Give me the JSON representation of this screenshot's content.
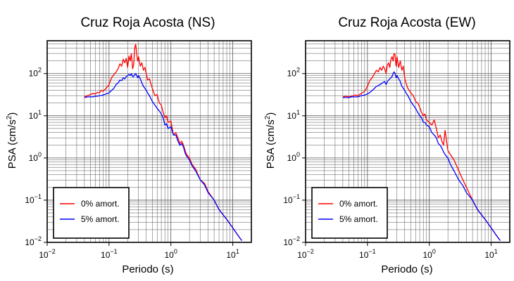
{
  "charts": [
    {
      "title": "Cruz Roja Acosta (NS)",
      "xlabel": "Periodo (s)",
      "ylabel_main": "PSA (cm/s",
      "ylabel_sup": "2",
      "ylabel_end": ")",
      "legend": [
        "0% amort.",
        "5% amort."
      ]
    },
    {
      "title": "Cruz Roja Acosta (EW)",
      "xlabel": "Periodo (s)",
      "ylabel_main": "PSA (cm/s",
      "ylabel_sup": "2",
      "ylabel_end": ")",
      "legend": [
        "0% amort.",
        "5% amort."
      ]
    }
  ],
  "x_ticks": [
    {
      "base": "10",
      "exp": "−2"
    },
    {
      "base": "10",
      "exp": "−1"
    },
    {
      "base": "10",
      "exp": "0"
    },
    {
      "base": "10",
      "exp": "1"
    }
  ],
  "y_ticks": [
    {
      "base": "10",
      "exp": "−2"
    },
    {
      "base": "10",
      "exp": "−1"
    },
    {
      "base": "10",
      "exp": "0"
    },
    {
      "base": "10",
      "exp": "1"
    },
    {
      "base": "10",
      "exp": "2"
    }
  ],
  "colors": {
    "series_0": "#ff0000",
    "series_5": "#0000ff",
    "grid": "#555555",
    "frame": "#000000"
  },
  "chart_data": [
    {
      "type": "line",
      "title": "Cruz Roja Acosta (NS)",
      "xlabel": "Periodo (s)",
      "ylabel": "PSA (cm/s2)",
      "xscale": "log",
      "yscale": "log",
      "xlim": [
        0.01,
        20
      ],
      "ylim": [
        0.01,
        600
      ],
      "grid": true,
      "legend_position": "bottom-left",
      "series": [
        {
          "name": "0% amort.",
          "color": "#ff0000",
          "x": [
            0.04,
            0.045,
            0.05,
            0.055,
            0.06,
            0.065,
            0.07,
            0.075,
            0.08,
            0.09,
            0.1,
            0.11,
            0.12,
            0.13,
            0.14,
            0.15,
            0.16,
            0.17,
            0.18,
            0.19,
            0.2,
            0.21,
            0.22,
            0.23,
            0.24,
            0.25,
            0.26,
            0.27,
            0.28,
            0.29,
            0.3,
            0.32,
            0.34,
            0.36,
            0.38,
            0.4,
            0.42,
            0.45,
            0.5,
            0.55,
            0.6,
            0.65,
            0.7,
            0.75,
            0.8,
            0.85,
            0.9,
            1.0,
            1.1,
            1.2,
            1.3,
            1.4,
            1.5,
            1.6,
            1.7,
            1.8,
            2.0,
            2.2,
            2.5,
            3.0,
            3.5,
            4.0,
            5.0,
            6.0,
            8.0,
            10.0,
            12.0,
            14.0
          ],
          "y": [
            28,
            30,
            32,
            34,
            33,
            36,
            35,
            40,
            38,
            45,
            55,
            80,
            95,
            110,
            130,
            170,
            150,
            220,
            180,
            230,
            140,
            260,
            200,
            300,
            130,
            160,
            400,
            500,
            300,
            200,
            250,
            150,
            180,
            120,
            140,
            100,
            70,
            75,
            45,
            30,
            32,
            20,
            18,
            12,
            9,
            10,
            7,
            7.5,
            3.5,
            4,
            3,
            2.2,
            2.5,
            2.0,
            1.5,
            1.2,
            1.0,
            0.7,
            0.55,
            0.3,
            0.25,
            0.16,
            0.1,
            0.06,
            0.035,
            0.022,
            0.015,
            0.011
          ]
        },
        {
          "name": "5% amort.",
          "color": "#0000ff",
          "x": [
            0.04,
            0.045,
            0.05,
            0.055,
            0.06,
            0.065,
            0.07,
            0.075,
            0.08,
            0.09,
            0.1,
            0.11,
            0.12,
            0.13,
            0.14,
            0.15,
            0.16,
            0.17,
            0.18,
            0.19,
            0.2,
            0.21,
            0.22,
            0.23,
            0.24,
            0.25,
            0.26,
            0.27,
            0.28,
            0.29,
            0.3,
            0.32,
            0.34,
            0.36,
            0.38,
            0.4,
            0.42,
            0.45,
            0.5,
            0.55,
            0.6,
            0.65,
            0.7,
            0.75,
            0.8,
            0.85,
            0.9,
            1.0,
            1.1,
            1.2,
            1.3,
            1.4,
            1.5,
            1.6,
            1.7,
            1.8,
            2.0,
            2.2,
            2.5,
            3.0,
            3.5,
            4.0,
            5.0,
            6.0,
            8.0,
            10.0,
            12.0,
            14.0
          ],
          "y": [
            27,
            28,
            28,
            28,
            29,
            29,
            30,
            30,
            31,
            33,
            35,
            40,
            45,
            55,
            60,
            70,
            68,
            80,
            75,
            85,
            90,
            95,
            90,
            100,
            85,
            85,
            95,
            100,
            90,
            80,
            90,
            75,
            60,
            50,
            45,
            40,
            35,
            30,
            22,
            18,
            15,
            13,
            11,
            9,
            6,
            6.5,
            5,
            5.5,
            3.5,
            3.5,
            2.5,
            2.0,
            2.2,
            1.8,
            1.3,
            1.1,
            0.9,
            0.65,
            0.5,
            0.3,
            0.23,
            0.15,
            0.1,
            0.06,
            0.035,
            0.022,
            0.015,
            0.011
          ]
        }
      ]
    },
    {
      "type": "line",
      "title": "Cruz Roja Acosta (EW)",
      "xlabel": "Periodo (s)",
      "ylabel": "PSA (cm/s2)",
      "xscale": "log",
      "yscale": "log",
      "xlim": [
        0.01,
        20
      ],
      "ylim": [
        0.01,
        600
      ],
      "grid": true,
      "legend_position": "bottom-left",
      "series": [
        {
          "name": "0% amort.",
          "color": "#ff0000",
          "x": [
            0.04,
            0.045,
            0.05,
            0.055,
            0.06,
            0.065,
            0.07,
            0.075,
            0.08,
            0.09,
            0.1,
            0.11,
            0.12,
            0.13,
            0.14,
            0.15,
            0.16,
            0.17,
            0.18,
            0.19,
            0.2,
            0.21,
            0.22,
            0.23,
            0.24,
            0.25,
            0.26,
            0.27,
            0.28,
            0.29,
            0.3,
            0.32,
            0.34,
            0.36,
            0.38,
            0.4,
            0.42,
            0.45,
            0.5,
            0.55,
            0.6,
            0.65,
            0.7,
            0.75,
            0.8,
            0.85,
            0.9,
            1.0,
            1.1,
            1.2,
            1.3,
            1.4,
            1.5,
            1.6,
            1.7,
            1.8,
            2.0,
            2.2,
            2.5,
            3.0,
            3.5,
            4.0,
            5.0,
            6.0,
            8.0,
            10.0,
            12.0,
            14.0
          ],
          "y": [
            28,
            29,
            28,
            29,
            30,
            31,
            30,
            32,
            34,
            38,
            50,
            70,
            80,
            100,
            120,
            110,
            140,
            120,
            150,
            130,
            100,
            160,
            180,
            140,
            220,
            250,
            200,
            300,
            280,
            150,
            250,
            140,
            200,
            120,
            150,
            80,
            60,
            45,
            35,
            30,
            22,
            20,
            16,
            12,
            10,
            11,
            8,
            7,
            6,
            8,
            5,
            3,
            3.5,
            2.5,
            2.0,
            4.5,
            1.5,
            1.2,
            0.9,
            0.5,
            0.3,
            0.2,
            0.1,
            0.06,
            0.035,
            0.022,
            0.015,
            0.011
          ]
        },
        {
          "name": "5% amort.",
          "color": "#0000ff",
          "x": [
            0.04,
            0.045,
            0.05,
            0.055,
            0.06,
            0.065,
            0.07,
            0.075,
            0.08,
            0.09,
            0.1,
            0.11,
            0.12,
            0.13,
            0.14,
            0.15,
            0.16,
            0.17,
            0.18,
            0.19,
            0.2,
            0.21,
            0.22,
            0.23,
            0.24,
            0.25,
            0.26,
            0.27,
            0.28,
            0.29,
            0.3,
            0.32,
            0.34,
            0.36,
            0.38,
            0.4,
            0.42,
            0.45,
            0.5,
            0.55,
            0.6,
            0.65,
            0.7,
            0.75,
            0.8,
            0.85,
            0.9,
            1.0,
            1.1,
            1.2,
            1.3,
            1.4,
            1.5,
            1.6,
            1.7,
            1.8,
            2.0,
            2.2,
            2.5,
            3.0,
            3.5,
            4.0,
            5.0,
            6.0,
            8.0,
            10.0,
            12.0,
            14.0
          ],
          "y": [
            27,
            27,
            27,
            28,
            28,
            28,
            28,
            29,
            30,
            31,
            33,
            36,
            40,
            45,
            50,
            52,
            55,
            58,
            62,
            65,
            55,
            65,
            70,
            75,
            80,
            85,
            100,
            110,
            100,
            80,
            90,
            75,
            65,
            50,
            45,
            40,
            35,
            30,
            22,
            18,
            15,
            12,
            10,
            9,
            7,
            7,
            6,
            5.5,
            4,
            3.5,
            3,
            2.2,
            2.0,
            1.7,
            1.4,
            1.2,
            1.0,
            0.7,
            0.5,
            0.3,
            0.22,
            0.15,
            0.1,
            0.06,
            0.035,
            0.022,
            0.015,
            0.011
          ]
        }
      ]
    }
  ]
}
